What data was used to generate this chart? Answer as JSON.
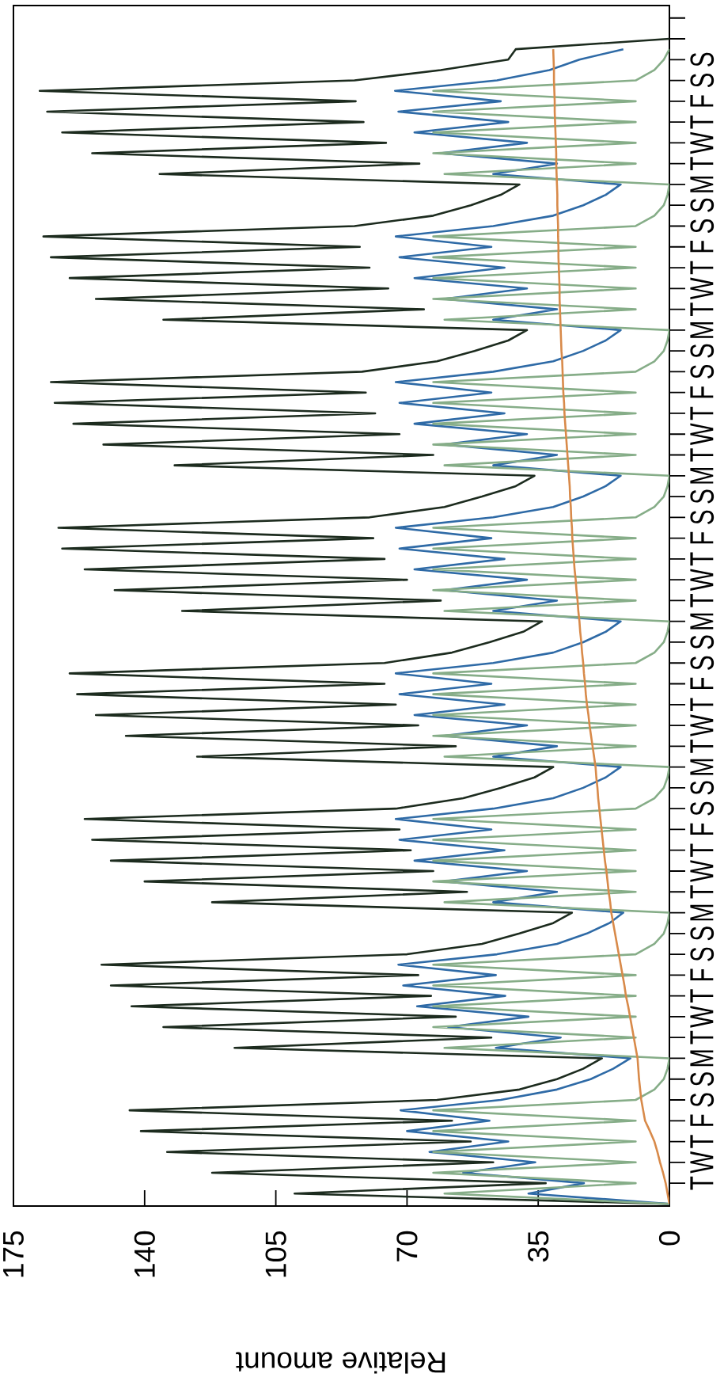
{
  "chart_data": {
    "type": "line",
    "orientation": "horizontal",
    "xlabel": "Relative amount",
    "xlim": [
      175,
      0
    ],
    "xticks": [
      0,
      35,
      70,
      105,
      140,
      175
    ],
    "categories": [
      null,
      null,
      null,
      null,
      null,
      "S",
      null,
      "S",
      null,
      "F",
      null,
      "T",
      null,
      "W",
      null,
      "T",
      null,
      "M",
      null,
      "S",
      null,
      "S",
      null,
      "F",
      null,
      "T",
      null,
      "W",
      null,
      "T",
      null,
      "M",
      null,
      "S",
      null,
      "S",
      null,
      "F",
      null,
      "T",
      null,
      "W",
      null,
      "T",
      null,
      "M",
      null,
      "S",
      null,
      "S",
      null,
      "F",
      null,
      "T",
      null,
      "W",
      null,
      "T",
      null,
      "M",
      null,
      "S",
      null,
      "S",
      null,
      "F",
      null,
      "T",
      null,
      "W",
      null,
      "T",
      null,
      "M",
      null,
      "S",
      null,
      "S",
      null,
      "F",
      null,
      "T",
      null,
      "W",
      null,
      "T",
      null,
      "M",
      null,
      "S",
      null,
      "S",
      null,
      "F",
      null,
      "T",
      null,
      "W",
      null,
      "T",
      null,
      "M",
      null,
      "S",
      null,
      "S",
      null,
      "F",
      null,
      "T",
      null,
      "W",
      null,
      "T",
      null,
      null
    ],
    "series": [
      {
        "color": "#1c2b1e",
        "values": [
          null,
          null,
          null,
          0,
          41,
          43,
          61,
          84,
          168,
          83.7,
          166,
          81.6,
          162,
          75.6,
          154,
          66.7,
          136,
          40,
          45,
          53,
          63,
          84,
          167,
          82.6,
          165,
          80,
          160,
          75,
          153,
          65.5,
          135,
          38,
          43,
          52,
          62,
          82,
          165,
          81,
          164,
          78.5,
          159,
          72,
          151,
          63,
          132,
          36,
          41,
          50,
          60,
          80,
          163,
          79,
          162,
          76,
          156,
          70,
          148,
          61,
          130,
          34,
          39,
          48,
          58,
          76,
          160,
          76,
          158,
          73,
          153,
          67,
          145,
          57,
          126,
          31,
          36,
          45,
          55,
          73,
          156,
          72,
          154,
          69,
          149,
          63,
          140,
          54,
          122,
          26,
          31,
          40,
          50,
          70,
          151.5,
          67,
          149,
          63.6,
          143.5,
          57,
          135,
          47.5,
          116,
          18,
          23,
          30,
          40,
          62,
          144,
          58,
          141,
          53,
          134,
          47,
          122,
          33,
          100,
          0
        ]
      },
      {
        "color": "#2e6aa6",
        "values": [
          null,
          null,
          null,
          null,
          12.3,
          24,
          32,
          46,
          73.2,
          45,
          72.3,
          43,
          68,
          38,
          61,
          30,
          47,
          13,
          17,
          23,
          31,
          47,
          73,
          47.5,
          72,
          44,
          68,
          38,
          60,
          30,
          47,
          13,
          17,
          23,
          31,
          47,
          73,
          47.5,
          72,
          44,
          68,
          38,
          60,
          30,
          47,
          13,
          17,
          23,
          31,
          47,
          73,
          47.5,
          72,
          44,
          68,
          38,
          60,
          30,
          47,
          13,
          17,
          23,
          31,
          47,
          73,
          47.5,
          72,
          44,
          68,
          38,
          60,
          30,
          47,
          13,
          17,
          23,
          31,
          47,
          73,
          47.5,
          72,
          44,
          68,
          38,
          60,
          30,
          47,
          12.3,
          16,
          22,
          30,
          46,
          72.3,
          46.3,
          71,
          43.8,
          67.3,
          37.6,
          59,
          29,
          46.3,
          10.4,
          15,
          21,
          30,
          45,
          71.7,
          48,
          70,
          43,
          64,
          35.8,
          55,
          22.8,
          37.6,
          0
        ]
      },
      {
        "color": "#86ad88",
        "values": [
          null,
          null,
          null,
          null,
          0,
          1.5,
          4,
          9,
          63,
          9,
          63,
          9,
          63,
          9,
          63,
          9,
          60,
          0,
          0.5,
          1.5,
          4,
          9,
          63,
          9,
          63,
          9,
          63,
          9,
          63,
          9,
          60,
          0,
          0.5,
          1.5,
          4,
          9,
          63,
          9,
          63,
          9,
          63,
          9,
          63,
          9,
          60,
          0,
          0.5,
          1.5,
          4,
          9,
          63,
          9,
          63,
          9,
          63,
          9,
          63,
          9,
          60,
          0,
          0.5,
          1.5,
          4,
          9,
          63,
          9,
          63,
          9,
          63,
          9,
          63,
          9,
          60,
          0,
          0.5,
          1.5,
          4,
          9,
          63,
          9,
          63,
          9,
          63,
          9,
          63,
          9,
          60,
          0,
          0.5,
          1.5,
          4,
          9,
          63,
          9,
          63,
          9,
          63,
          9,
          63,
          9,
          60,
          0,
          0.5,
          1.5,
          4,
          9,
          63,
          9,
          63,
          9,
          63,
          9,
          63,
          9,
          60,
          0
        ]
      },
      {
        "color": "#d88a4a",
        "values": [
          null,
          null,
          null,
          null,
          31,
          30.9,
          30.8,
          30.8,
          30.7,
          30.6,
          30.6,
          30.5,
          30.4,
          30.3,
          30.2,
          30.2,
          30.1,
          30,
          29.9,
          29.9,
          29.8,
          29.7,
          29.7,
          29.6,
          29.6,
          29.5,
          29.4,
          29.3,
          29.3,
          29.2,
          29.1,
          29,
          28.9,
          28.8,
          28.6,
          28.5,
          28.4,
          28.3,
          28.1,
          28,
          27.8,
          27.6,
          27.4,
          27.2,
          27,
          26.8,
          26.6,
          26.5,
          26.3,
          26.2,
          26,
          25.9,
          25.7,
          25.5,
          25.3,
          25,
          24.8,
          24.5,
          24.3,
          24,
          23.8,
          23.5,
          23.3,
          23,
          22.8,
          22.5,
          22.3,
          22,
          21.6,
          21.3,
          20.9,
          20.5,
          20.1,
          19.7,
          19.5,
          19.2,
          19,
          18.7,
          18.4,
          18.1,
          17.8,
          17.5,
          17.2,
          16.8,
          16.5,
          16.2,
          15.8,
          15.5,
          15,
          14.5,
          14,
          13.5,
          13,
          12.5,
          12,
          11.6,
          11,
          10.5,
          10,
          9.5,
          9,
          8.5,
          8.3,
          8.1,
          7.8,
          7.5,
          7,
          6.5,
          5.2,
          4,
          3.2,
          2.5,
          1.7,
          1,
          0.5,
          0
        ]
      }
    ]
  }
}
